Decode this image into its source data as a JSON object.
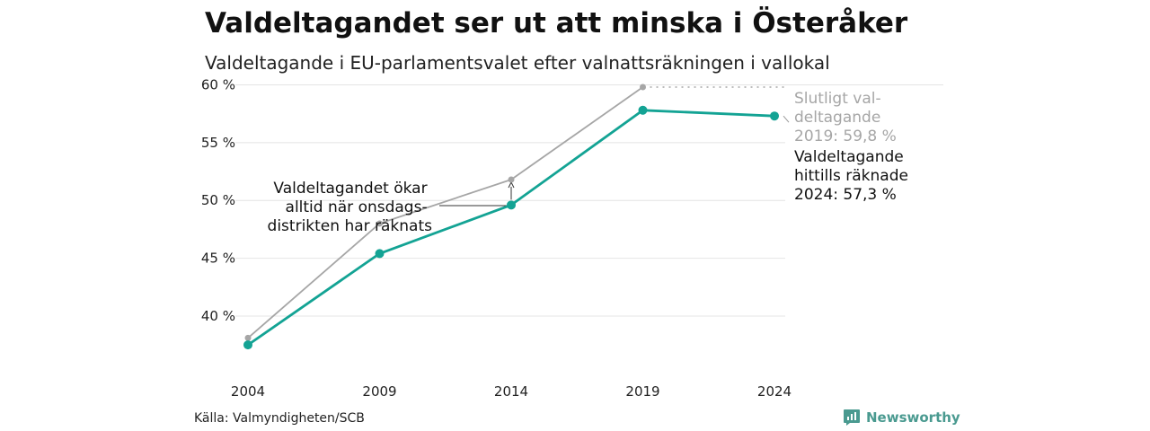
{
  "header": {
    "title": "Valdeltagandet ser ut att minska i Österåker",
    "subtitle": "Valdeltagande i EU-parlamentsvalet efter valnattsräkningen i vallokal"
  },
  "footer": {
    "source": "Källa: Valmyndigheten/SCB",
    "brand": "Newsworthy"
  },
  "colors": {
    "counted": "#13a394",
    "final": "#a6a6a6",
    "grid": "#e4e4e4",
    "brand": "#4a9a90"
  },
  "chart_data": {
    "type": "line",
    "title": "Valdeltagandet ser ut att minska i Österåker",
    "subtitle": "Valdeltagande i EU-parlamentsvalet efter valnattsräkningen i vallokal",
    "x": [
      2004,
      2009,
      2014,
      2019,
      2024
    ],
    "x_tick_labels": [
      "2004",
      "2009",
      "2014",
      "2019",
      "2024"
    ],
    "y_ticks": [
      40,
      45,
      50,
      55,
      60
    ],
    "y_tick_labels": [
      "40 %",
      "45 %",
      "50 %",
      "55 %",
      "60 %"
    ],
    "ylim": [
      36.5,
      60.5
    ],
    "grid": "horizontal",
    "series": [
      {
        "key": "final",
        "values": [
          38.1,
          48.0,
          51.8,
          59.8,
          null
        ],
        "color": "#a6a6a6"
      },
      {
        "key": "counted",
        "values": [
          37.5,
          45.4,
          49.6,
          57.8,
          57.3
        ],
        "color": "#13a394"
      }
    ],
    "annotations": {
      "final_label": [
        "Slutligt val-",
        "deltagande",
        "2019: 59,8 %"
      ],
      "counted_label": [
        "Valdeltagande",
        "hittills räknade",
        "2024: 57,3 %"
      ],
      "gap_note": [
        "Valdeltagandet ökar",
        "alltid när onsdags-",
        "distrikten har räknats"
      ]
    }
  }
}
